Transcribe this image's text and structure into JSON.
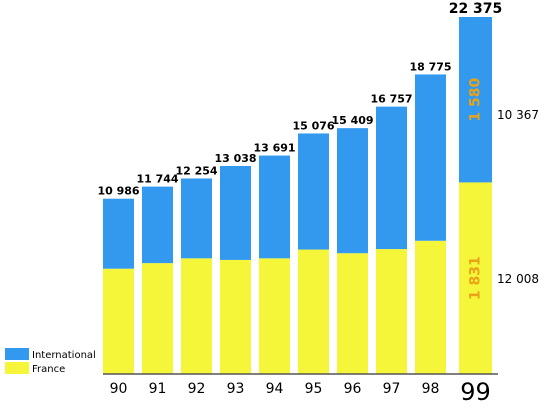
{
  "chart_data": {
    "type": "bar",
    "stacked": true,
    "categories": [
      "90",
      "91",
      "92",
      "93",
      "94",
      "95",
      "96",
      "97",
      "98",
      "99"
    ],
    "series": [
      {
        "name": "France",
        "color": "#f5f53a",
        "values": [
          6600,
          6950,
          7250,
          7150,
          7250,
          7800,
          7570,
          7830,
          8350,
          12008
        ]
      },
      {
        "name": "International",
        "color": "#3399ee",
        "values": [
          4386,
          4794,
          5004,
          5888,
          6441,
          7276,
          7839,
          8927,
          10425,
          10367
        ]
      }
    ],
    "totals": [
      "10 986",
      "11 744",
      "12 254",
      "13 038",
      "13 691",
      "15 076",
      "15 409",
      "16 757",
      "18 775",
      "22 375"
    ],
    "highlight": {
      "category": "99",
      "international_inner_label": "1 580",
      "france_inner_label": "1 831",
      "international_side_label": "10 367",
      "france_side_label": "12 008",
      "inner_label_color": "#e8a317"
    },
    "ylim": [
      0,
      22375
    ],
    "grid": false,
    "legend": {
      "position": "bottom-left",
      "items": [
        {
          "label": "International",
          "color": "#3399ee"
        },
        {
          "label": "France",
          "color": "#f5f53a"
        }
      ]
    }
  }
}
